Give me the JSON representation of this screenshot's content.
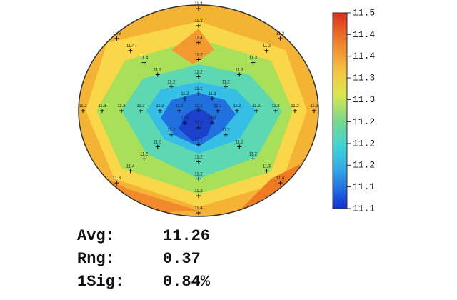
{
  "wafer": {
    "center": 11.1,
    "spokes": [
      [
        11.1,
        11.2,
        11.2,
        11.3,
        11.2,
        11.3
      ],
      [
        11.1,
        11.2,
        11.3,
        11.3,
        11.2,
        11.3
      ],
      [
        11.1,
        11.2,
        11.2,
        11.4,
        11.3,
        11.3
      ],
      [
        11.2,
        11.2,
        11.3,
        11.4,
        11.4,
        11.3
      ],
      [
        11.2,
        11.2,
        11.3,
        11.3,
        11.3,
        11.2
      ],
      [
        11.1,
        11.2,
        11.3,
        11.2,
        11.4,
        11.3
      ],
      [
        11.1,
        11.1,
        11.2,
        11.2,
        11.3,
        11.4
      ],
      [
        11.1,
        11.2,
        11.2,
        11.2,
        11.3,
        11.4
      ]
    ]
  },
  "colorbar": {
    "lim": [
      11.08,
      11.45
    ],
    "ticks": [
      {
        "value": 11.45,
        "label": "11.5"
      },
      {
        "value": 11.409,
        "label": "11.4"
      },
      {
        "value": 11.368,
        "label": "11.4"
      },
      {
        "value": 11.327,
        "label": "11.3"
      },
      {
        "value": 11.286,
        "label": "11.3"
      },
      {
        "value": 11.244,
        "label": "11.2"
      },
      {
        "value": 11.203,
        "label": "11.2"
      },
      {
        "value": 11.162,
        "label": "11.2"
      },
      {
        "value": 11.121,
        "label": "11.1"
      },
      {
        "value": 11.08,
        "label": "11.1"
      }
    ]
  },
  "stats": [
    {
      "label": "Avg:",
      "value": "11.26"
    },
    {
      "label": "Rng:",
      "value": "0.37"
    },
    {
      "label": "1Sig:",
      "value": "0.84%"
    }
  ]
}
